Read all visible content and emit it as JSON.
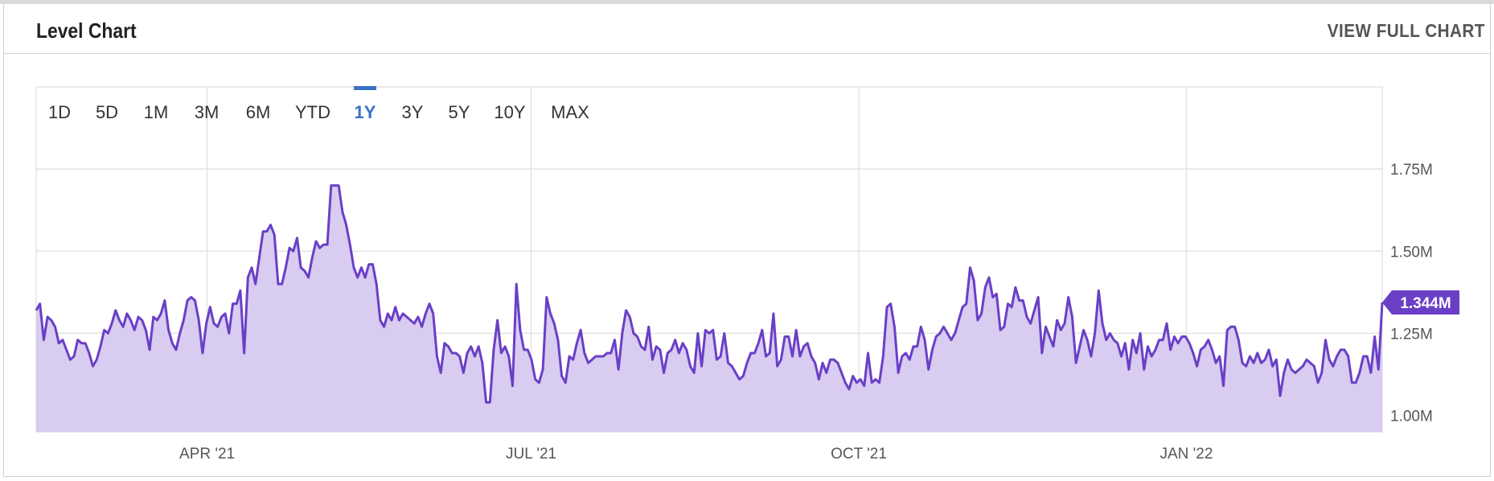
{
  "header": {
    "title": "Level Chart",
    "view_full_label": "VIEW FULL CHART"
  },
  "range_buttons": [
    "1D",
    "5D",
    "1M",
    "3M",
    "6M",
    "YTD",
    "1Y",
    "3Y",
    "5Y",
    "10Y",
    "MAX"
  ],
  "selected_range": "1Y",
  "colors": {
    "line": "#6a3fc6",
    "fill": "#d8ccf0",
    "selected": "#3a72c4",
    "grid": "#e3e3e3",
    "axis_text": "#555555"
  },
  "chart_data": {
    "type": "area",
    "x_start": "2021-02-12",
    "x_end": "2022-02-25",
    "x_tick_labels": [
      {
        "date": "2021-04-01",
        "label": "APR '21"
      },
      {
        "date": "2021-07-01",
        "label": "JUL '21"
      },
      {
        "date": "2021-10-01",
        "label": "OCT '21"
      },
      {
        "date": "2022-01-01",
        "label": "JAN '22"
      }
    ],
    "y_ticks": [
      1000000,
      1250000,
      1500000,
      1750000
    ],
    "y_tick_labels": [
      "1.00M",
      "1.25M",
      "1.50M",
      "1.75M"
    ],
    "ylim": [
      950000,
      2000000
    ],
    "last_value_label": "1.344M",
    "series": [
      {
        "values": [
          1320000,
          1340000,
          1230000,
          1300000,
          1290000,
          1270000,
          1220000,
          1230000,
          1200000,
          1170000,
          1180000,
          1230000,
          1220000,
          1220000,
          1190000,
          1150000,
          1170000,
          1210000,
          1260000,
          1250000,
          1280000,
          1320000,
          1290000,
          1270000,
          1310000,
          1290000,
          1260000,
          1300000,
          1290000,
          1260000,
          1200000,
          1300000,
          1290000,
          1310000,
          1350000,
          1260000,
          1220000,
          1200000,
          1250000,
          1290000,
          1350000,
          1360000,
          1350000,
          1290000,
          1190000,
          1280000,
          1330000,
          1280000,
          1270000,
          1300000,
          1310000,
          1250000,
          1340000,
          1340000,
          1380000,
          1190000,
          1420000,
          1450000,
          1400000,
          1480000,
          1560000,
          1560000,
          1580000,
          1550000,
          1400000,
          1400000,
          1450000,
          1510000,
          1500000,
          1540000,
          1450000,
          1440000,
          1420000,
          1480000,
          1530000,
          1510000,
          1520000,
          1520000,
          1700000,
          1700000,
          1700000,
          1620000,
          1580000,
          1520000,
          1450000,
          1420000,
          1450000,
          1420000,
          1460000,
          1460000,
          1400000,
          1290000,
          1270000,
          1310000,
          1290000,
          1330000,
          1290000,
          1310000,
          1300000,
          1290000,
          1280000,
          1300000,
          1270000,
          1310000,
          1340000,
          1310000,
          1180000,
          1130000,
          1220000,
          1210000,
          1190000,
          1190000,
          1180000,
          1130000,
          1190000,
          1210000,
          1180000,
          1210000,
          1160000,
          1040000,
          1040000,
          1200000,
          1290000,
          1190000,
          1210000,
          1180000,
          1090000,
          1400000,
          1260000,
          1200000,
          1200000,
          1170000,
          1110000,
          1100000,
          1140000,
          1360000,
          1310000,
          1280000,
          1230000,
          1120000,
          1100000,
          1180000,
          1170000,
          1220000,
          1260000,
          1190000,
          1160000,
          1170000,
          1180000,
          1180000,
          1180000,
          1190000,
          1190000,
          1230000,
          1140000,
          1250000,
          1320000,
          1300000,
          1250000,
          1240000,
          1210000,
          1200000,
          1270000,
          1170000,
          1210000,
          1200000,
          1130000,
          1190000,
          1200000,
          1230000,
          1190000,
          1220000,
          1200000,
          1150000,
          1130000,
          1250000,
          1150000,
          1260000,
          1250000,
          1260000,
          1170000,
          1180000,
          1250000,
          1160000,
          1150000,
          1130000,
          1110000,
          1120000,
          1160000,
          1190000,
          1190000,
          1220000,
          1260000,
          1180000,
          1190000,
          1310000,
          1150000,
          1170000,
          1240000,
          1240000,
          1180000,
          1260000,
          1180000,
          1210000,
          1220000,
          1180000,
          1160000,
          1110000,
          1160000,
          1130000,
          1170000,
          1170000,
          1160000,
          1130000,
          1100000,
          1080000,
          1120000,
          1100000,
          1110000,
          1090000,
          1190000,
          1100000,
          1110000,
          1100000,
          1180000,
          1330000,
          1340000,
          1270000,
          1130000,
          1180000,
          1190000,
          1170000,
          1210000,
          1210000,
          1270000,
          1230000,
          1140000,
          1200000,
          1240000,
          1250000,
          1270000,
          1250000,
          1230000,
          1250000,
          1290000,
          1330000,
          1340000,
          1450000,
          1410000,
          1290000,
          1310000,
          1390000,
          1420000,
          1360000,
          1370000,
          1260000,
          1270000,
          1340000,
          1330000,
          1390000,
          1350000,
          1350000,
          1300000,
          1280000,
          1320000,
          1360000,
          1190000,
          1270000,
          1240000,
          1210000,
          1290000,
          1260000,
          1280000,
          1360000,
          1300000,
          1160000,
          1210000,
          1260000,
          1230000,
          1180000,
          1250000,
          1380000,
          1280000,
          1230000,
          1250000,
          1230000,
          1220000,
          1180000,
          1220000,
          1140000,
          1230000,
          1190000,
          1250000,
          1140000,
          1210000,
          1180000,
          1200000,
          1230000,
          1230000,
          1280000,
          1200000,
          1240000,
          1220000,
          1240000,
          1240000,
          1220000,
          1190000,
          1150000,
          1200000,
          1210000,
          1230000,
          1200000,
          1160000,
          1180000,
          1090000,
          1260000,
          1270000,
          1270000,
          1230000,
          1160000,
          1150000,
          1180000,
          1160000,
          1190000,
          1160000,
          1170000,
          1200000,
          1150000,
          1170000,
          1060000,
          1130000,
          1170000,
          1140000,
          1130000,
          1140000,
          1150000,
          1170000,
          1160000,
          1150000,
          1100000,
          1130000,
          1230000,
          1170000,
          1150000,
          1180000,
          1200000,
          1200000,
          1180000,
          1100000,
          1100000,
          1130000,
          1180000,
          1180000,
          1130000,
          1240000,
          1140000,
          1344000
        ]
      }
    ]
  }
}
